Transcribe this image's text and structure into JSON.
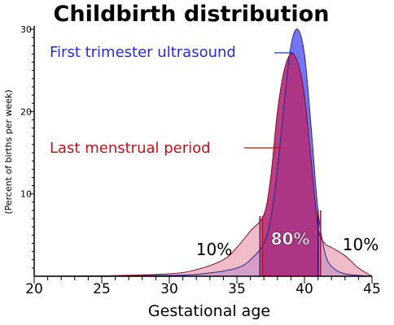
{
  "chart_data": {
    "type": "area",
    "title": "Childbirth distribution",
    "xlabel": "Gestational age",
    "ylabel": "(Percent of births per week)",
    "xlim": [
      20,
      45
    ],
    "ylim": [
      0,
      30
    ],
    "x_ticks": [
      "20",
      "25",
      "30",
      "35",
      "40",
      "45"
    ],
    "y_ticks": [
      "10",
      "20",
      "30"
    ],
    "series": [
      {
        "name": "First trimester ultrasound",
        "color": "#6b6bf0",
        "x": [
          20,
          30,
          33,
          35,
          36,
          37,
          37.5,
          38,
          38.5,
          39,
          39.5,
          40,
          40.5,
          41,
          41.5,
          42,
          43,
          45
        ],
        "y": [
          0,
          0.1,
          0.4,
          1,
          2,
          4,
          7,
          13,
          21,
          28,
          30,
          27,
          18,
          8,
          3,
          1.2,
          0.3,
          0
        ]
      },
      {
        "name": "Last menstrual period",
        "color": "#e06b8a",
        "x": [
          20,
          25,
          30,
          32,
          34,
          35,
          36,
          37,
          37.5,
          38,
          38.5,
          39,
          39.5,
          40,
          40.5,
          41,
          41.5,
          42,
          43,
          44,
          45
        ],
        "y": [
          0,
          0.05,
          0.3,
          0.8,
          2,
          3.5,
          5.5,
          7.5,
          12,
          20,
          25,
          27,
          26,
          22,
          14,
          6,
          4,
          3.5,
          2.5,
          1,
          0
        ]
      }
    ],
    "annotations": [
      "10%",
      "80%",
      "10%"
    ],
    "percentile_lines_weeks": [
      36.8,
      41.1
    ],
    "grid": false
  }
}
